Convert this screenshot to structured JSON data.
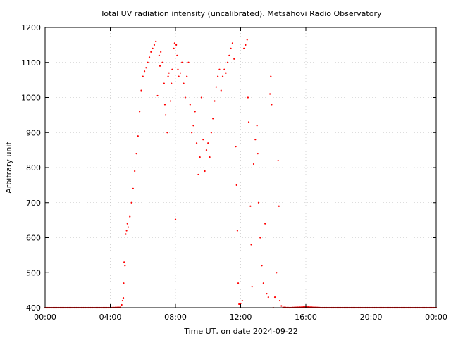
{
  "chart_data": {
    "type": "scatter",
    "title": "Total UV radiation intensity (uncalibrated). Metsähovi Radio Observatory",
    "xlabel": "Time UT, on date 2024-09-22",
    "ylabel": "Arbitrary unit",
    "xlim": [
      0,
      24
    ],
    "ylim": [
      400,
      1200
    ],
    "xticks": [
      0,
      4,
      8,
      12,
      16,
      20,
      24
    ],
    "xtick_labels": [
      "00:00",
      "04:00",
      "08:00",
      "12:00",
      "16:00",
      "20:00",
      "00:00"
    ],
    "yticks": [
      400,
      500,
      600,
      700,
      800,
      900,
      1000,
      1100,
      1200
    ],
    "ytick_labels": [
      "400",
      "500",
      "600",
      "700",
      "800",
      "900",
      "1000",
      "1100",
      "1200"
    ],
    "grid": true,
    "marker_color": "#ff0000",
    "series": [
      {
        "points": [
          [
            0.0,
            400
          ],
          [
            1.0,
            400
          ],
          [
            2.0,
            400
          ],
          [
            3.0,
            400
          ],
          [
            4.0,
            400
          ],
          [
            4.6,
            401
          ],
          [
            4.7,
            408
          ],
          [
            4.75,
            420
          ],
          [
            4.8,
            428
          ],
          [
            4.82,
            470
          ],
          [
            4.85,
            530
          ],
          [
            4.9,
            520
          ],
          [
            4.95,
            610
          ],
          [
            5.0,
            620
          ],
          [
            5.05,
            640
          ],
          [
            5.1,
            630
          ],
          [
            5.2,
            660
          ],
          [
            5.3,
            700
          ],
          [
            5.4,
            740
          ],
          [
            5.5,
            790
          ],
          [
            5.6,
            840
          ],
          [
            5.7,
            890
          ],
          [
            5.8,
            960
          ],
          [
            5.9,
            1020
          ],
          [
            6.0,
            1060
          ],
          [
            6.1,
            1075
          ],
          [
            6.2,
            1085
          ],
          [
            6.3,
            1100
          ],
          [
            6.4,
            1115
          ],
          [
            6.5,
            1130
          ],
          [
            6.6,
            1140
          ],
          [
            6.7,
            1150
          ],
          [
            6.8,
            1160
          ],
          [
            6.9,
            1005
          ],
          [
            7.0,
            1120
          ],
          [
            7.05,
            1090
          ],
          [
            7.1,
            1130
          ],
          [
            7.2,
            1100
          ],
          [
            7.3,
            1040
          ],
          [
            7.35,
            980
          ],
          [
            7.4,
            950
          ],
          [
            7.5,
            900
          ],
          [
            7.55,
            1060
          ],
          [
            7.6,
            1070
          ],
          [
            7.7,
            990
          ],
          [
            7.75,
            1040
          ],
          [
            7.8,
            1080
          ],
          [
            7.9,
            1140
          ],
          [
            7.95,
            1155
          ],
          [
            8.0,
            652
          ],
          [
            8.05,
            1150
          ],
          [
            8.1,
            1120
          ],
          [
            8.15,
            1080
          ],
          [
            8.2,
            1060
          ],
          [
            8.3,
            1070
          ],
          [
            8.4,
            1100
          ],
          [
            8.5,
            1040
          ],
          [
            8.6,
            1000
          ],
          [
            8.7,
            1060
          ],
          [
            8.8,
            1100
          ],
          [
            8.9,
            980
          ],
          [
            9.0,
            900
          ],
          [
            9.1,
            920
          ],
          [
            9.2,
            960
          ],
          [
            9.3,
            870
          ],
          [
            9.4,
            780
          ],
          [
            9.5,
            830
          ],
          [
            9.6,
            1000
          ],
          [
            9.7,
            880
          ],
          [
            9.8,
            790
          ],
          [
            9.9,
            850
          ],
          [
            10.0,
            870
          ],
          [
            10.1,
            830
          ],
          [
            10.2,
            900
          ],
          [
            10.3,
            940
          ],
          [
            10.4,
            990
          ],
          [
            10.5,
            1030
          ],
          [
            10.6,
            1060
          ],
          [
            10.7,
            1080
          ],
          [
            10.8,
            1020
          ],
          [
            10.9,
            1060
          ],
          [
            11.0,
            1080
          ],
          [
            11.1,
            1070
          ],
          [
            11.2,
            1100
          ],
          [
            11.3,
            1120
          ],
          [
            11.4,
            1140
          ],
          [
            11.5,
            1155
          ],
          [
            11.6,
            1110
          ],
          [
            11.7,
            860
          ],
          [
            11.75,
            750
          ],
          [
            11.8,
            620
          ],
          [
            11.85,
            470
          ],
          [
            11.9,
            410
          ],
          [
            12.0,
            412
          ],
          [
            12.1,
            420
          ],
          [
            12.2,
            1140
          ],
          [
            12.3,
            1150
          ],
          [
            12.4,
            1165
          ],
          [
            12.45,
            1000
          ],
          [
            12.5,
            930
          ],
          [
            12.6,
            690
          ],
          [
            12.65,
            580
          ],
          [
            12.7,
            460
          ],
          [
            12.8,
            810
          ],
          [
            12.9,
            880
          ],
          [
            13.0,
            920
          ],
          [
            13.05,
            840
          ],
          [
            13.1,
            700
          ],
          [
            13.2,
            600
          ],
          [
            13.3,
            520
          ],
          [
            13.4,
            470
          ],
          [
            13.5,
            640
          ],
          [
            13.6,
            440
          ],
          [
            13.7,
            430
          ],
          [
            13.8,
            1010
          ],
          [
            13.85,
            1060
          ],
          [
            13.9,
            980
          ],
          [
            14.0,
            400
          ],
          [
            14.1,
            430
          ],
          [
            14.2,
            500
          ],
          [
            14.3,
            820
          ],
          [
            14.35,
            690
          ],
          [
            14.4,
            420
          ],
          [
            14.5,
            405
          ],
          [
            14.6,
            401
          ],
          [
            15.0,
            400
          ],
          [
            16.0,
            402
          ],
          [
            17.0,
            400
          ],
          [
            18.0,
            400
          ],
          [
            20.0,
            400
          ],
          [
            22.0,
            400
          ],
          [
            24.0,
            400
          ]
        ]
      }
    ]
  }
}
